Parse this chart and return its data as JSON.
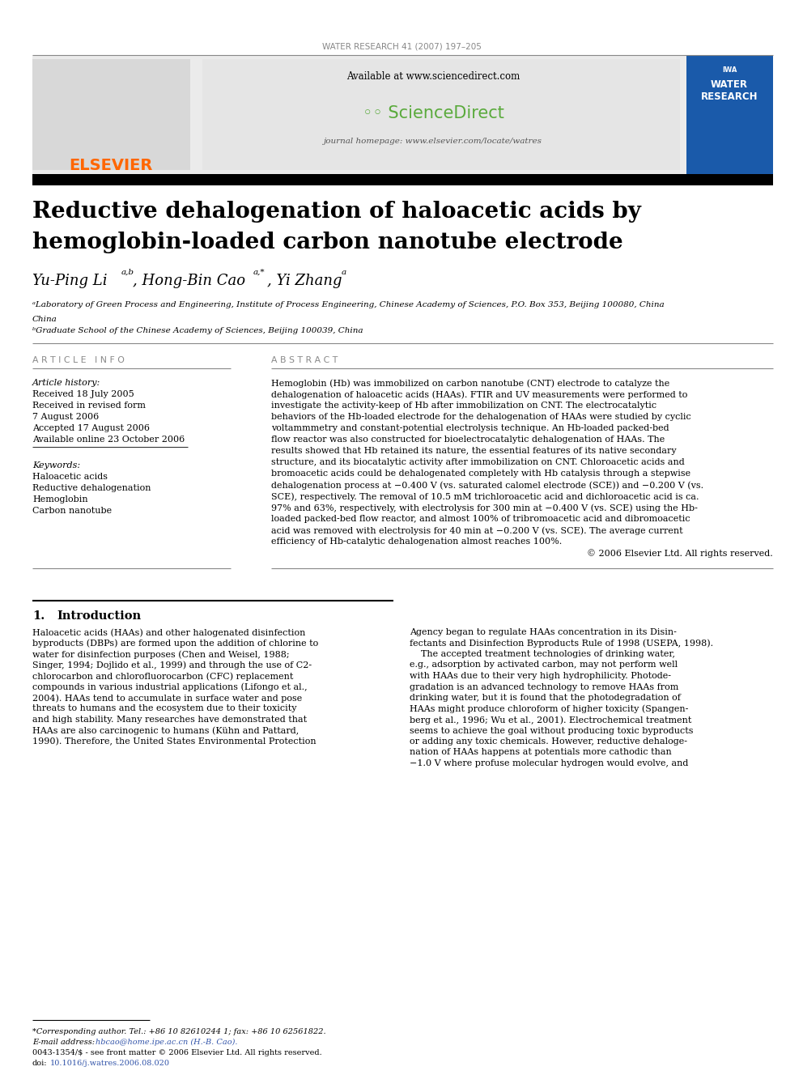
{
  "page_bg": "#ffffff",
  "page_width": 9.92,
  "page_height": 13.23,
  "dpi": 100,
  "journal_header": "WATER RESEARCH 41 (2007) 197–205",
  "journal_header_color": "#888888",
  "journal_header_fontsize": 7.5,
  "header_bg_color": "#e8e8e8",
  "elsevier_logo_text": "ELSEVIER",
  "elsevier_logo_color": "#ff6600",
  "sciencedirect_available": "Available at www.sciencedirect.com",
  "sciencedirect_url": "journal homepage: www.elsevier.com/locate/watres",
  "sciencedirect_name": "ScienceDirect",
  "sciencedirect_name_color": "#5aaa3c",
  "article_title_line1": "Reductive dehalogenation of haloacetic acids by",
  "article_title_line2": "hemoglobin-loaded carbon nanotube electrode",
  "article_title_color": "#000000",
  "article_title_fontsize": 20,
  "affil_a": "ᵃLaboratory of Green Process and Engineering, Institute of Process Engineering, Chinese Academy of Sciences, P.O. Box 353, Beijing 100080, China",
  "affil_b": "ᵇGraduate School of the Chinese Academy of Sciences, Beijing 100039, China",
  "article_info_label": "A R T I C L E   I N F O",
  "abstract_label": "A B S T R A C T",
  "history_label": "Article history:",
  "received1": "Received 18 July 2005",
  "received2": "Received in revised form",
  "received3": "7 August 2006",
  "accepted": "Accepted 17 August 2006",
  "available": "Available online 23 October 2006",
  "keywords_label": "Keywords:",
  "kw1": "Haloacetic acids",
  "kw2": "Reductive dehalogenation",
  "kw3": "Hemoglobin",
  "kw4": "Carbon nanotube",
  "copyright": "© 2006 Elsevier Ltd. All rights reserved.",
  "ref_blue": "#3355aa"
}
